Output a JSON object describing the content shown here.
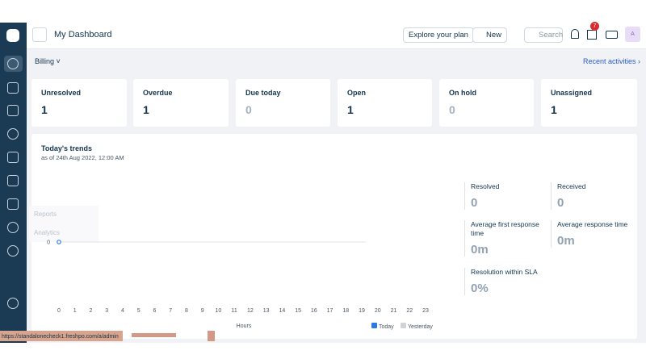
{
  "header": {
    "title": "My Dashboard",
    "explore": "Explore your plan",
    "new": "New",
    "search": "Search",
    "badge": "7",
    "avatar": "A"
  },
  "toolbar": {
    "filter": "Billing",
    "recent": "Recent activities"
  },
  "cards": [
    {
      "label": "Unresolved",
      "value": "1"
    },
    {
      "label": "Overdue",
      "value": "1"
    },
    {
      "label": "Due today",
      "value": "0"
    },
    {
      "label": "Open",
      "value": "1"
    },
    {
      "label": "On hold",
      "value": "0"
    },
    {
      "label": "Unassigned",
      "value": "1"
    }
  ],
  "trends": {
    "title": "Today's trends",
    "subtitle": "as of 24th Aug 2022, 12:00 AM",
    "chart": {
      "type": "line",
      "x": [
        0,
        1,
        2,
        3,
        4,
        5,
        6,
        7,
        8,
        9,
        10,
        11,
        12,
        13,
        14,
        15,
        16,
        17,
        18,
        19,
        20,
        21,
        22,
        23
      ],
      "xlabel": "Hours",
      "yticks": [
        0
      ],
      "series": [
        {
          "name": "Today",
          "color": "#2c7be5",
          "x": [
            0
          ],
          "values": [
            0
          ]
        },
        {
          "name": "Yesterday",
          "color": "#cfd4da",
          "x": [],
          "values": []
        }
      ]
    },
    "stats": [
      {
        "label": "Resolved",
        "value": "0"
      },
      {
        "label": "Received",
        "value": "0"
      },
      {
        "label": "Average first response time",
        "value": "0m"
      },
      {
        "label": "Average response time",
        "value": "0m"
      },
      {
        "label": "Resolution within SLA",
        "value": "0%"
      }
    ]
  },
  "overlay": {
    "items": [
      "Reports",
      "Analytics"
    ]
  },
  "statusbar": {
    "url": "https://standalonecheck1.freshpo.com/a/admin"
  }
}
